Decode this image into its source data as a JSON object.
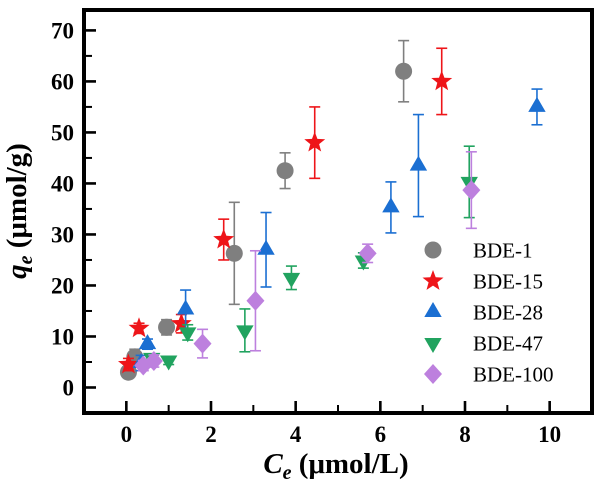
{
  "figure": {
    "background": "#ffffff",
    "frame_color": "#000000",
    "tick_color": "#000000",
    "text_color": "#000000"
  },
  "chart_data": {
    "type": "scatter",
    "title": "",
    "xlabel": {
      "variable": "C",
      "subscript": "e",
      "unit": " (μmol/L)"
    },
    "ylabel": {
      "variable": "q",
      "subscript": "e",
      "unit": " (μmol/g)"
    },
    "xlim": [
      -1,
      11
    ],
    "ylim": [
      -5,
      74
    ],
    "x_major_ticks": [
      0,
      2,
      4,
      6,
      8,
      10
    ],
    "x_minor_ticks": [
      1,
      3,
      5,
      7,
      9,
      11
    ],
    "y_major_ticks": [
      0,
      10,
      20,
      30,
      40,
      50,
      60,
      70
    ],
    "y_minor_ticks": [
      5,
      15,
      25,
      35,
      45,
      55,
      65
    ],
    "grid": false,
    "error_bars": true,
    "point_format": "[Ce_umol_per_L, qe_umol_per_g, err_plus_minus]",
    "legend": {
      "position": "inside-bottom-right"
    },
    "series": [
      {
        "name": "BDE-1",
        "marker": "circle",
        "color": "#7f7f7f",
        "points": [
          [
            0.05,
            3,
            1
          ],
          [
            0.2,
            6,
            1.5
          ],
          [
            0.95,
            11.8,
            1.5
          ],
          [
            2.55,
            26.3,
            10
          ],
          [
            3.75,
            42.5,
            3.5
          ],
          [
            6.55,
            62,
            6
          ]
        ]
      },
      {
        "name": "BDE-15",
        "marker": "star",
        "color": "#ee1519",
        "points": [
          [
            0.05,
            4.5,
            1.2
          ],
          [
            0.3,
            11.6,
            1
          ],
          [
            1.3,
            12.5,
            1.8
          ],
          [
            2.3,
            29,
            4
          ],
          [
            4.45,
            48,
            7
          ],
          [
            7.45,
            60,
            6.5
          ]
        ]
      },
      {
        "name": "BDE-28",
        "marker": "triangle-up",
        "color": "#1b6fd2",
        "points": [
          [
            0.35,
            4.8,
            1.5
          ],
          [
            0.5,
            8.5,
            1
          ],
          [
            1.4,
            15.3,
            3.8
          ],
          [
            3.3,
            27,
            7.3
          ],
          [
            6.25,
            35.3,
            5
          ],
          [
            6.9,
            43.5,
            10
          ],
          [
            9.7,
            55,
            3.5
          ]
        ]
      },
      {
        "name": "BDE-47",
        "marker": "triangle-down",
        "color": "#21a35f",
        "points": [
          [
            0.6,
            5.8,
            0.8
          ],
          [
            1.0,
            5.3,
            0.8
          ],
          [
            1.45,
            10.8,
            1.5
          ],
          [
            2.8,
            11.2,
            4.2
          ],
          [
            3.9,
            21.5,
            2.3
          ],
          [
            5.6,
            24.9,
            1.5
          ],
          [
            8.1,
            40.3,
            7
          ]
        ]
      },
      {
        "name": "BDE-100",
        "marker": "diamond",
        "color": "#bd80de",
        "points": [
          [
            0.4,
            4.3,
            1
          ],
          [
            0.65,
            5.2,
            1.2
          ],
          [
            1.8,
            8.6,
            2.8
          ],
          [
            3.05,
            17,
            9.8
          ],
          [
            5.7,
            26.3,
            1.8
          ],
          [
            8.15,
            38.7,
            7.5
          ]
        ]
      }
    ]
  }
}
